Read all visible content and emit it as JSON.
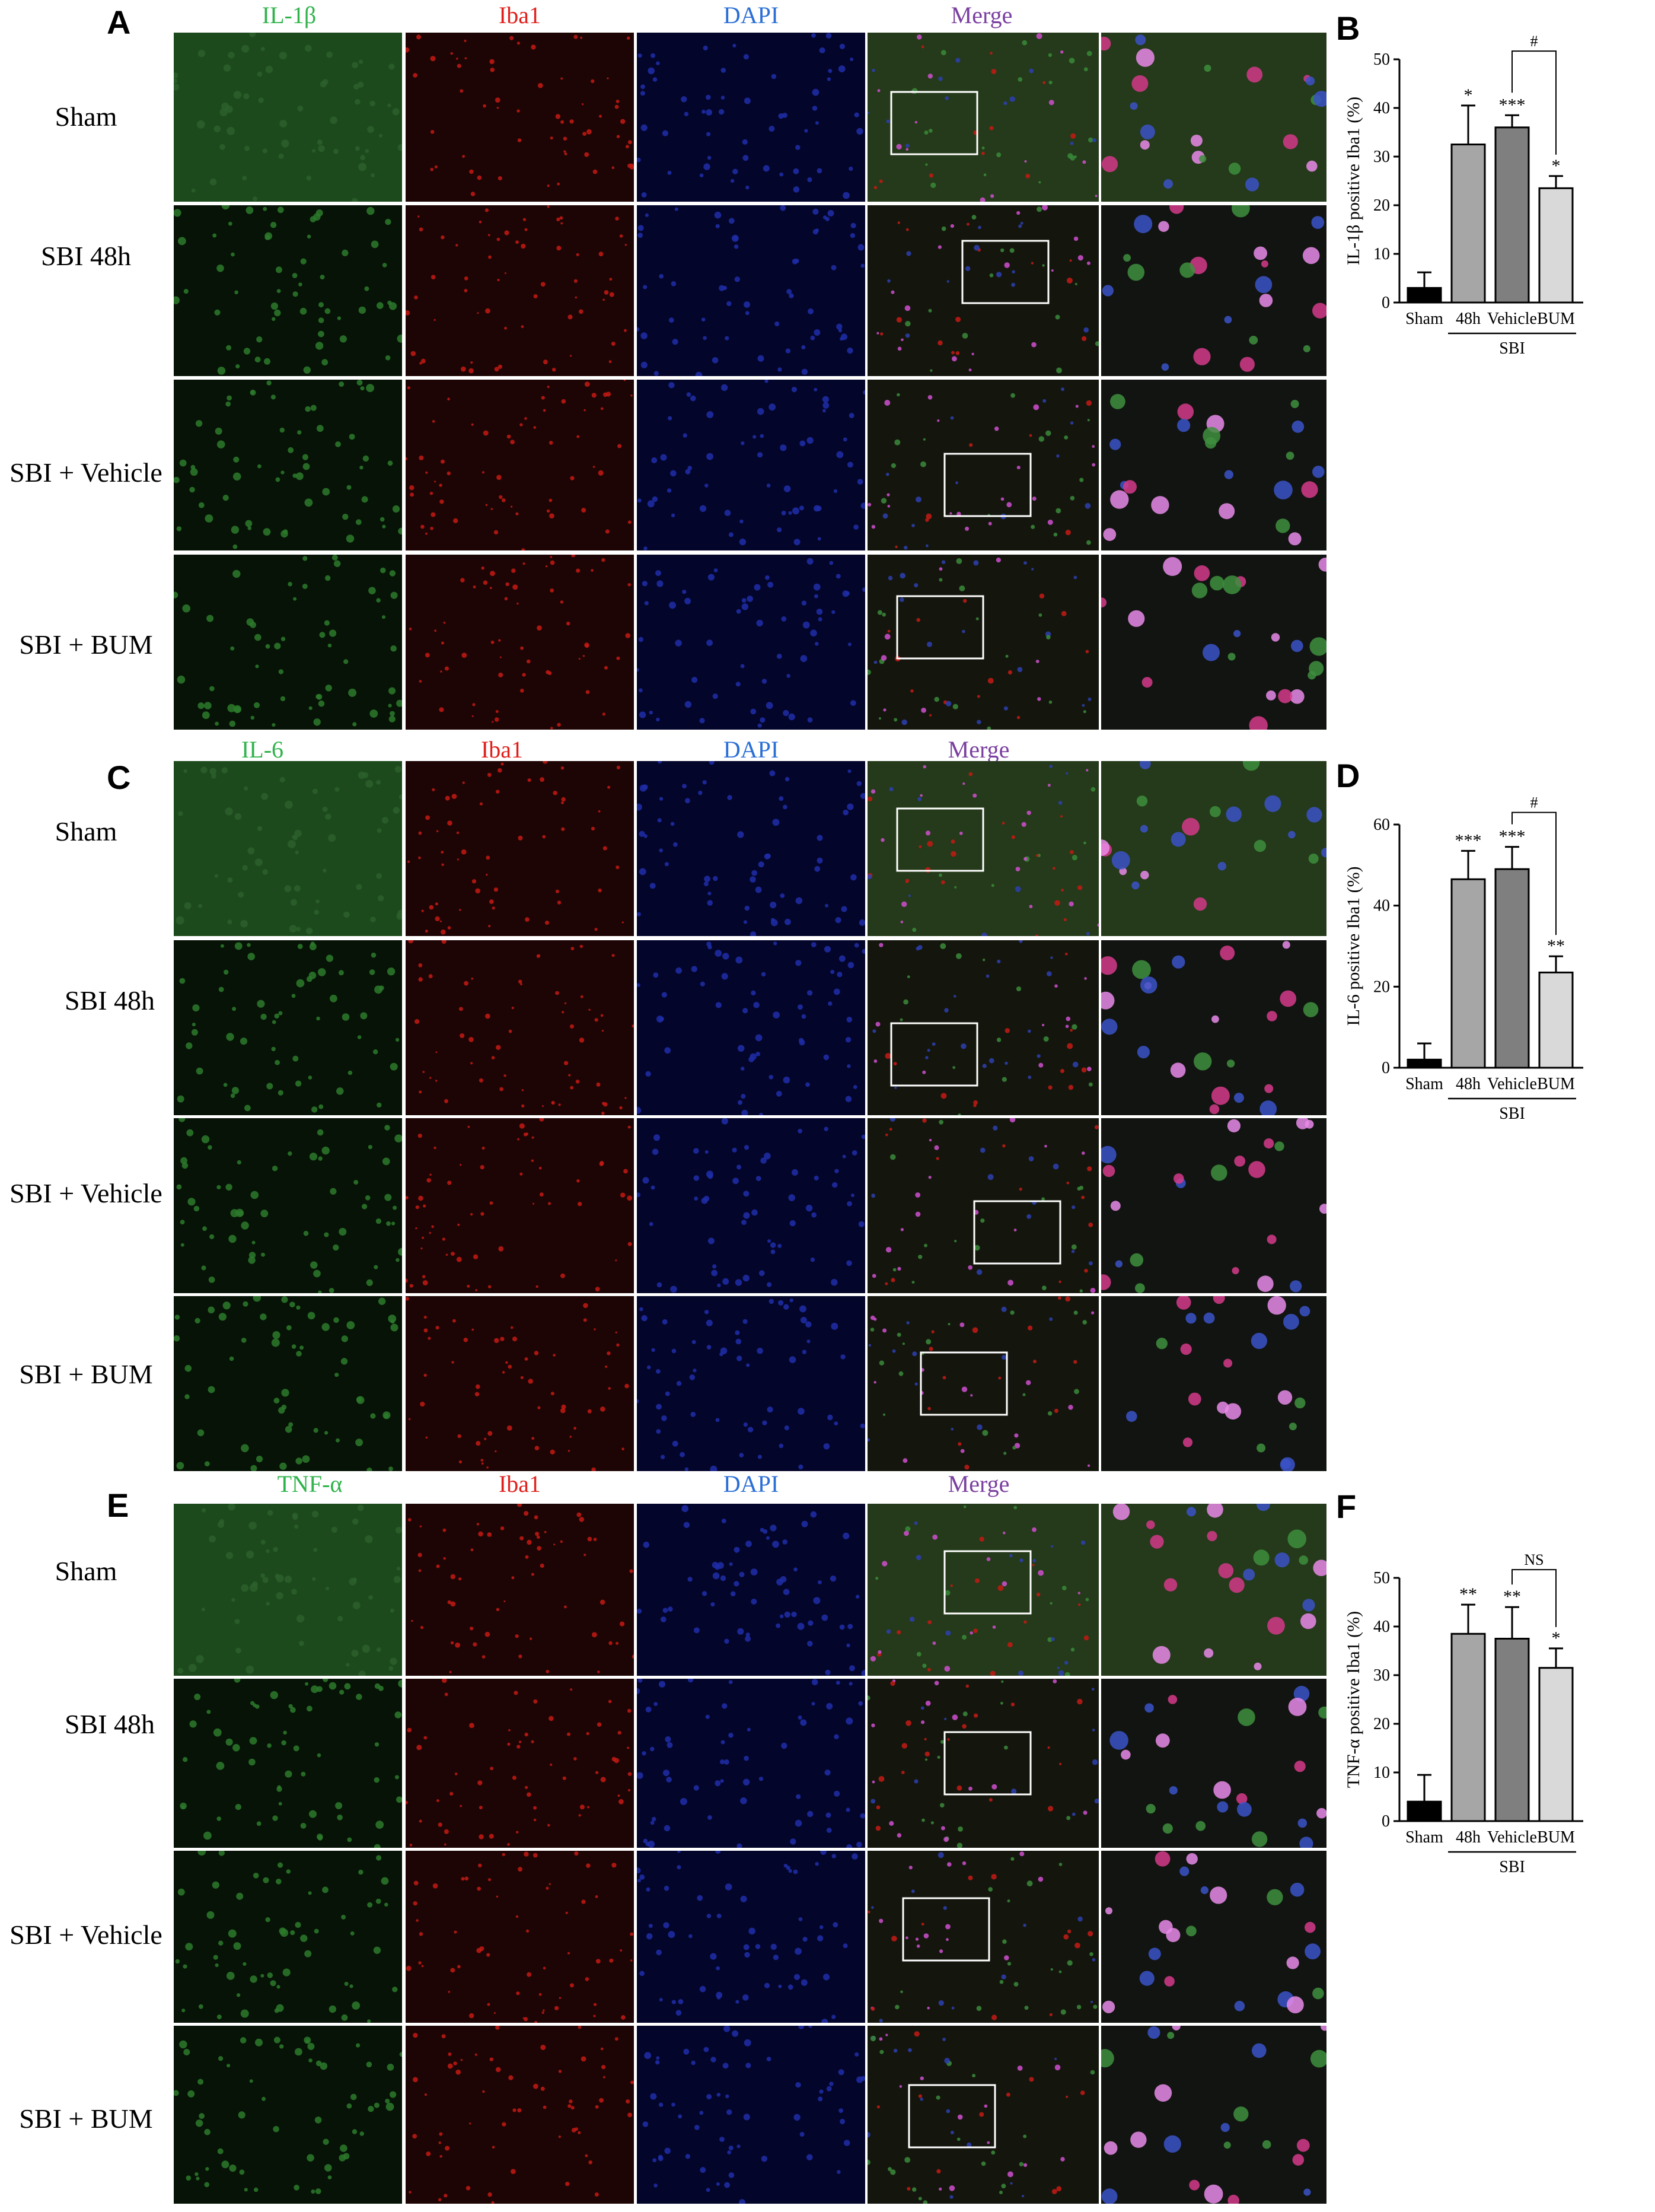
{
  "figure": {
    "sections": [
      {
        "letter": "A",
        "channels": [
          "IL-1β",
          "Iba1",
          "DAPI",
          "Merge"
        ],
        "rows": [
          "Sham",
          "SBI 48h",
          "SBI + Vehicle",
          "SBI + BUM"
        ]
      },
      {
        "letter": "C",
        "channels": [
          "IL-6",
          "Iba1",
          "DAPI",
          "Merge"
        ],
        "rows": [
          "Sham",
          "SBI 48h",
          "SBI + Vehicle",
          "SBI + BUM"
        ]
      },
      {
        "letter": "E",
        "channels": [
          "TNF-α",
          "Iba1",
          "DAPI",
          "Merge"
        ],
        "rows": [
          "Sham",
          "SBI 48h",
          "SBI + Vehicle",
          "SBI + BUM"
        ]
      }
    ],
    "colors": {
      "green": "#2fb34a",
      "red": "#e0201c",
      "blue": "#2a6fd6",
      "purple": "#7a3fa0"
    }
  },
  "chart_data": [
    {
      "letter": "B",
      "type": "bar",
      "categories": [
        "Sham",
        "48h",
        "Vehicle",
        "BUM"
      ],
      "group_label": "SBI",
      "values": [
        3,
        32.5,
        36,
        23.5
      ],
      "errors": [
        3.2,
        8,
        2.5,
        2.5
      ],
      "significance": [
        "",
        "*",
        "***",
        "*"
      ],
      "comparison": {
        "from": 2,
        "to": 3,
        "label": "#"
      },
      "ylabel": "IL-1β positive Iba1 (%)",
      "ylim": [
        0,
        50
      ],
      "yticks": [
        0,
        10,
        20,
        30,
        40,
        50
      ],
      "bar_colors": [
        "#000000",
        "#a6a6a6",
        "#7f7f7f",
        "#d9d9d9"
      ]
    },
    {
      "letter": "D",
      "type": "bar",
      "categories": [
        "Sham",
        "48h",
        "Vehicle",
        "BUM"
      ],
      "group_label": "SBI",
      "values": [
        2,
        46.5,
        49,
        23.5
      ],
      "errors": [
        4,
        7,
        5.5,
        4
      ],
      "significance": [
        "",
        "***",
        "***",
        "**"
      ],
      "comparison": {
        "from": 2,
        "to": 3,
        "label": "#"
      },
      "ylabel": "IL-6 positive Iba1 (%)",
      "ylim": [
        0,
        60
      ],
      "yticks": [
        0,
        20,
        40,
        60
      ],
      "bar_colors": [
        "#000000",
        "#a6a6a6",
        "#7f7f7f",
        "#d9d9d9"
      ]
    },
    {
      "letter": "F",
      "type": "bar",
      "categories": [
        "Sham",
        "48h",
        "Vehicle",
        "BUM"
      ],
      "group_label": "SBI",
      "values": [
        4,
        38.5,
        37.5,
        31.5
      ],
      "errors": [
        5.5,
        6,
        6.5,
        4
      ],
      "significance": [
        "",
        "**",
        "**",
        "*"
      ],
      "comparison": {
        "from": 2,
        "to": 3,
        "label": "NS"
      },
      "ylabel": "TNF-α positive Iba1 (%)",
      "ylim": [
        0,
        50
      ],
      "yticks": [
        0,
        10,
        20,
        30,
        40,
        50
      ],
      "bar_colors": [
        "#000000",
        "#a6a6a6",
        "#7f7f7f",
        "#d9d9d9"
      ]
    }
  ]
}
